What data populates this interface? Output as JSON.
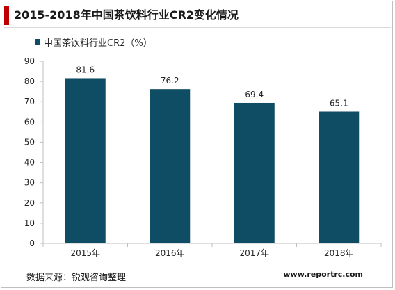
{
  "title": "2015-2018年中国茶饮料行业CR2变化情况",
  "source": "数据来源：锐观咨询整理",
  "website": "www.reportrc.com",
  "colors": {
    "accent": "#c00000",
    "bar": "#0e4d64",
    "axis": "#bfbfbf",
    "text": "#262626"
  },
  "chart_data": {
    "type": "bar",
    "categories": [
      "2015年",
      "2016年",
      "2017年",
      "2018年"
    ],
    "series": [
      {
        "name": "中国茶饮料行业CR2（%）",
        "values": [
          81.6,
          76.2,
          69.4,
          65.1
        ]
      }
    ],
    "data_labels": [
      "81.6",
      "76.2",
      "69.4",
      "65.1"
    ],
    "yticks": [
      "0",
      "10",
      "20",
      "30",
      "40",
      "50",
      "60",
      "70",
      "80",
      "90"
    ],
    "ylim": [
      0,
      90
    ],
    "grid": false,
    "legend": "top-left"
  }
}
